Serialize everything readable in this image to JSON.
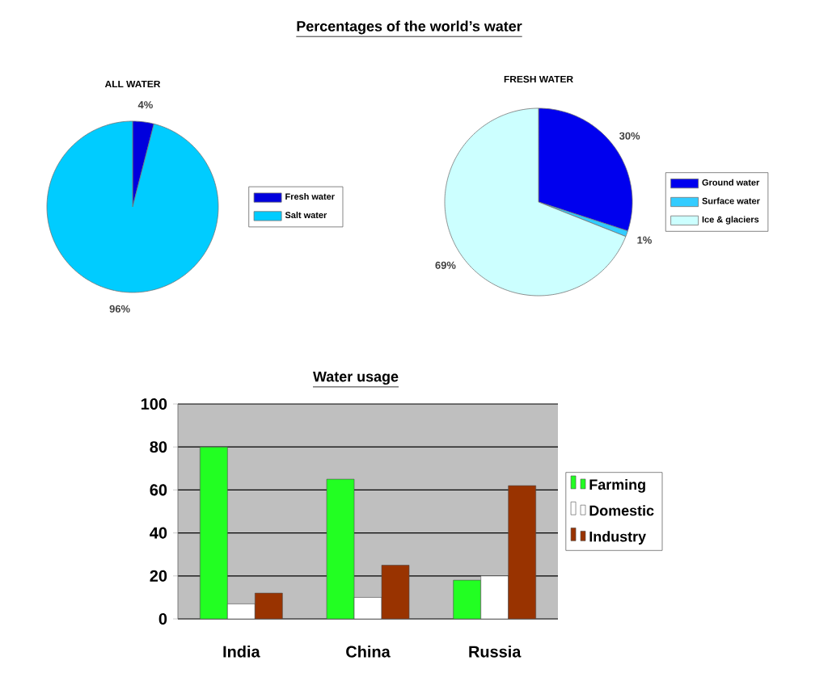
{
  "chart_data": [
    {
      "type": "pie",
      "title": "Percentages of the world’s water",
      "subtitle": "ALL WATER",
      "categories": [
        "Fresh water",
        "Salt water"
      ],
      "values": [
        4,
        96
      ],
      "colors": [
        "#0000dd",
        "#00ccff"
      ],
      "value_labels": [
        "4%",
        "96%"
      ],
      "legend": "right"
    },
    {
      "type": "pie",
      "title": "FRESH WATER",
      "categories": [
        "Ground water",
        "Surface water",
        "Ice & glaciers"
      ],
      "values": [
        30,
        1,
        69
      ],
      "colors": [
        "#0000ee",
        "#33ccff",
        "#ccffff"
      ],
      "value_labels": [
        "30%",
        "1%",
        "69%"
      ],
      "legend": "right"
    },
    {
      "type": "bar",
      "title": "Water usage",
      "categories": [
        "India",
        "China",
        "Russia"
      ],
      "series": [
        {
          "name": "Farming",
          "color": "#22ff22",
          "values": [
            80,
            65,
            18
          ]
        },
        {
          "name": "Domestic",
          "color": "#ffffff",
          "values": [
            7,
            10,
            20
          ]
        },
        {
          "name": "Industry",
          "color": "#993300",
          "values": [
            12,
            25,
            62
          ]
        }
      ],
      "ylim": [
        0,
        100
      ],
      "yticks": [
        0,
        20,
        40,
        60,
        80,
        100
      ],
      "grid": "y",
      "legend": "right"
    }
  ]
}
